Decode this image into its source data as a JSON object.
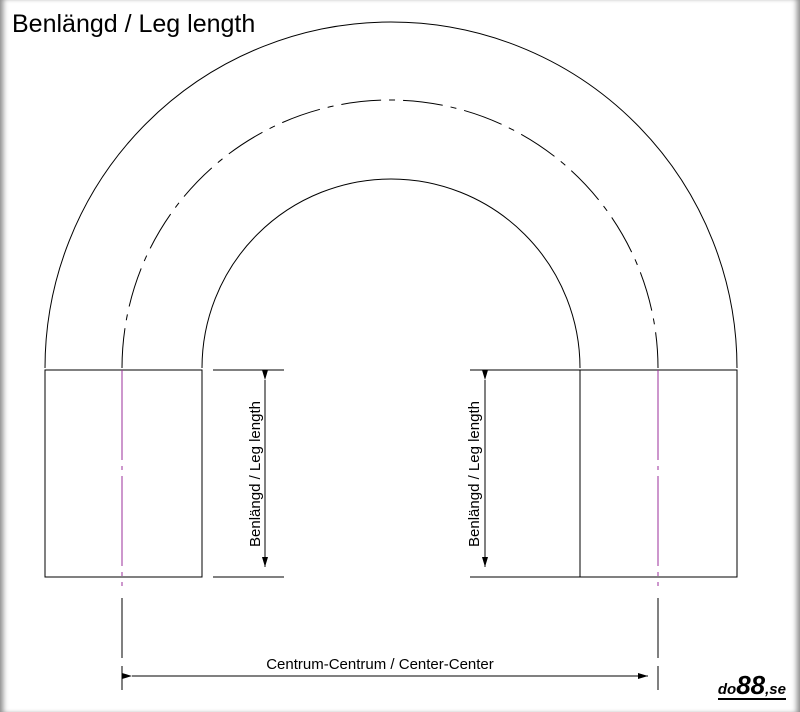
{
  "title": "Benlängd / Leg length",
  "leg_label_left": "Benlängd / Leg length",
  "leg_label_right": "Benlängd / Leg length",
  "center_label": "Centrum-Centrum / Center-Center",
  "logo": {
    "prefix": "do",
    "number": "88",
    "suffix": ",se"
  },
  "colors": {
    "lines": "#000000",
    "centerline": "#9b2f9b"
  }
}
